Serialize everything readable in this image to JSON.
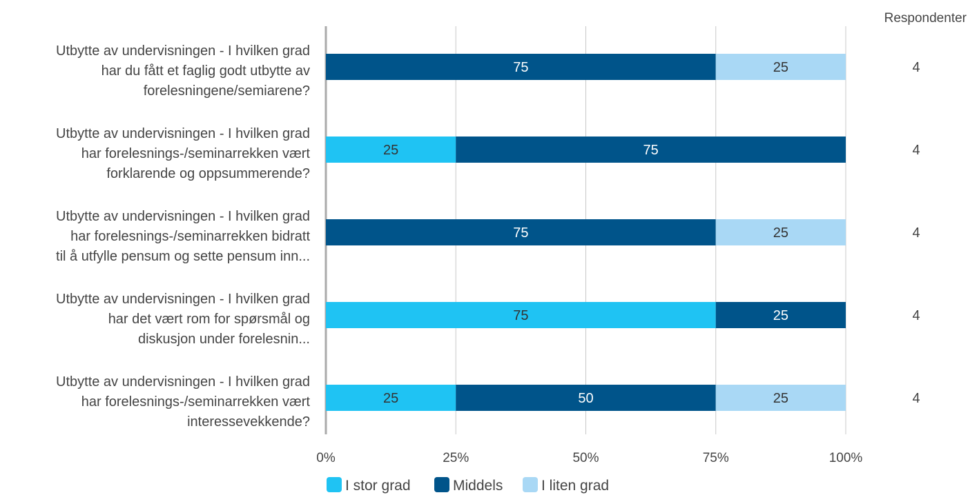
{
  "chart_data": {
    "type": "bar",
    "orientation": "horizontal",
    "stacked": true,
    "percent_scale": true,
    "categories": [
      [
        "Utbytte av undervisningen - I hvilken grad",
        "har du fått et faglig godt utbytte av",
        "forelesningene/semiarene?"
      ],
      [
        "Utbytte av undervisningen - I hvilken grad",
        "har forelesnings-/seminarrekken vært",
        "forklarende og oppsummerende?"
      ],
      [
        "Utbytte av undervisningen - I hvilken grad",
        "har forelesnings-/seminarrekken bidratt",
        "til å utfylle pensum og sette pensum inn..."
      ],
      [
        "Utbytte av undervisningen - I hvilken grad",
        "har det vært rom for spørsmål og",
        "diskusjon under forelesnin..."
      ],
      [
        "Utbytte av undervisningen - I hvilken grad",
        "har forelesnings-/seminarrekken vært",
        "interessevekkende?"
      ]
    ],
    "series": [
      {
        "name": "I stor grad",
        "color": "#1fc3f3",
        "text_color": "#333333",
        "values": [
          0,
          25,
          0,
          75,
          25
        ]
      },
      {
        "name": "Middels",
        "color": "#00548a",
        "text_color": "#ffffff",
        "values": [
          75,
          75,
          75,
          25,
          50
        ]
      },
      {
        "name": "I liten grad",
        "color": "#a9d8f5",
        "text_color": "#333333",
        "values": [
          25,
          0,
          25,
          0,
          25
        ]
      }
    ],
    "respondents_header": "Respondenter",
    "respondents": [
      4,
      4,
      4,
      4,
      4
    ],
    "xlim": [
      0,
      100
    ],
    "xticks": [
      "0%",
      "25%",
      "50%",
      "75%",
      "100%"
    ],
    "grid": true,
    "legend_position": "bottom"
  }
}
